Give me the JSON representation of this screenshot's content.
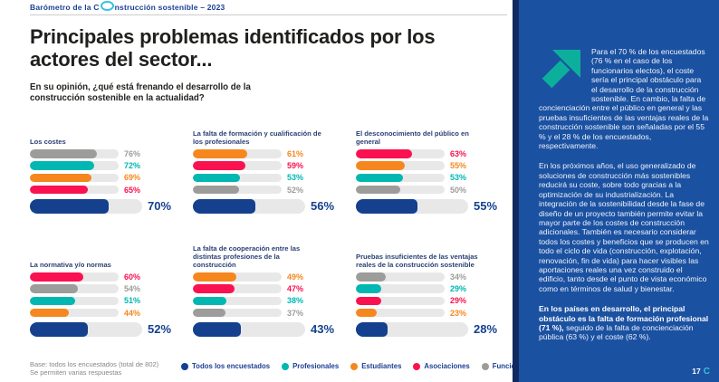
{
  "header": {
    "brand_prefix": "Barómetro de la C",
    "brand_suffix": "nstrucción sostenible – 2023"
  },
  "main": {
    "title": "Principales problemas identificados por los actores del sector...",
    "question": "En su opinión, ¿qué está frenando el desarrollo de la construcción sostenible en la actualidad?"
  },
  "colors": {
    "todos": "#14408e",
    "profesionales": "#00b7b2",
    "estudiantes": "#f6871f",
    "asociaciones": "#fa1150",
    "funcionarios": "#9c9c9b",
    "track": "#e8e8e9",
    "sidebar_panel": "#1b51a1",
    "sidebar_strip": "#10295f",
    "accent_arrow": "#0caf9b",
    "accent_cyan": "#35c4dc"
  },
  "chart_data": [
    {
      "type": "bar",
      "title": "Los costes",
      "unit": "%",
      "scale_max": 100,
      "categories": [
        "Funcionarios Electos",
        "Profesionales",
        "Estudiantes",
        "Asociaciones"
      ],
      "keys": [
        "funcionarios",
        "profesionales",
        "estudiantes",
        "asociaciones"
      ],
      "values": [
        76,
        72,
        69,
        65
      ],
      "total_label": "Todos los encuestados",
      "total_key": "todos",
      "total_value": 70
    },
    {
      "type": "bar",
      "title": "La falta de formación y cualificación de los profesionales",
      "unit": "%",
      "scale_max": 100,
      "categories": [
        "Estudiantes",
        "Asociaciones",
        "Profesionales",
        "Funcionarios Electos"
      ],
      "keys": [
        "estudiantes",
        "asociaciones",
        "profesionales",
        "funcionarios"
      ],
      "values": [
        61,
        59,
        53,
        52
      ],
      "total_label": "Todos los encuestados",
      "total_key": "todos",
      "total_value": 56
    },
    {
      "type": "bar",
      "title": "El desconocimiento del público en general",
      "unit": "%",
      "scale_max": 100,
      "categories": [
        "Asociaciones",
        "Estudiantes",
        "Profesionales",
        "Funcionarios Electos"
      ],
      "keys": [
        "asociaciones",
        "estudiantes",
        "profesionales",
        "funcionarios"
      ],
      "values": [
        63,
        55,
        53,
        50
      ],
      "total_label": "Todos los encuestados",
      "total_key": "todos",
      "total_value": 55
    },
    {
      "type": "bar",
      "title": "La normativa y/o normas",
      "unit": "%",
      "scale_max": 100,
      "categories": [
        "Asociaciones",
        "Funcionarios Electos",
        "Profesionales",
        "Estudiantes"
      ],
      "keys": [
        "asociaciones",
        "funcionarios",
        "profesionales",
        "estudiantes"
      ],
      "values": [
        60,
        54,
        51,
        44
      ],
      "total_label": "Todos los encuestados",
      "total_key": "todos",
      "total_value": 52
    },
    {
      "type": "bar",
      "title": "La falta de cooperación entre las distintas profesiones de la construcción",
      "unit": "%",
      "scale_max": 100,
      "categories": [
        "Estudiantes",
        "Asociaciones",
        "Profesionales",
        "Funcionarios Electos"
      ],
      "keys": [
        "estudiantes",
        "asociaciones",
        "profesionales",
        "funcionarios"
      ],
      "values": [
        49,
        47,
        38,
        37
      ],
      "total_label": "Todos los encuestados",
      "total_key": "todos",
      "total_value": 43
    },
    {
      "type": "bar",
      "title": "Pruebas insuficientes de las ventajas reales de la construcción sostenible",
      "unit": "%",
      "scale_max": 100,
      "categories": [
        "Funcionarios Electos",
        "Profesionales",
        "Asociaciones",
        "Estudiantes"
      ],
      "keys": [
        "funcionarios",
        "profesionales",
        "asociaciones",
        "estudiantes"
      ],
      "values": [
        34,
        29,
        29,
        23
      ],
      "total_label": "Todos los encuestados",
      "total_key": "todos",
      "total_value": 28
    }
  ],
  "legend": [
    {
      "key": "todos",
      "label": "Todos los encuestados"
    },
    {
      "key": "profesionales",
      "label": "Profesionales"
    },
    {
      "key": "estudiantes",
      "label": "Estudiantes"
    },
    {
      "key": "asociaciones",
      "label": "Asociaciones"
    },
    {
      "key": "funcionarios",
      "label": "Funcionarios Electos"
    }
  ],
  "base_note": {
    "line1": "Base: todos los encuestados (total de 802)",
    "line2": "Se permiten varias respuestas"
  },
  "sidebar": {
    "p1": "Para el 70 % de los encuestados (76 % en el caso de los funcionarios electos), el coste sería el principal obstáculo para el desarrollo de la construcción sostenible. En cambio, la falta de concienciación entre el público en general y las pruebas insuficientes de las ventajas reales de la construcción sostenible son señaladas por el 55 % y el 28 % de los encuestados, respectivamente.",
    "p2": "En los próximos años, el uso generalizado de soluciones de construcción más sostenibles reducirá su coste, sobre todo gracias a la optimización de su industrialización. La integración de la sostenibilidad desde la fase de diseño de un proyecto también permite evitar la mayor parte de los costes de construcción adicionales. También es necesario considerar todos los costes y beneficios que se producen en todo el ciclo de vida (construcción, explotación, renovación, fin de vida) para hacer visibles las aportaciones reales una vez construido el edificio, tanto desde el punto de vista económico como en términos de salud y bienestar.",
    "p3_bold": "En los países en desarrollo, el principal obstáculo es la falta de formación profesional (71 %),",
    "p3_rest": " seguido de la falta de concienciación pública (63 %) y el coste (62 %)."
  },
  "footer": {
    "page_number": "17",
    "logo_fragment": "C"
  }
}
